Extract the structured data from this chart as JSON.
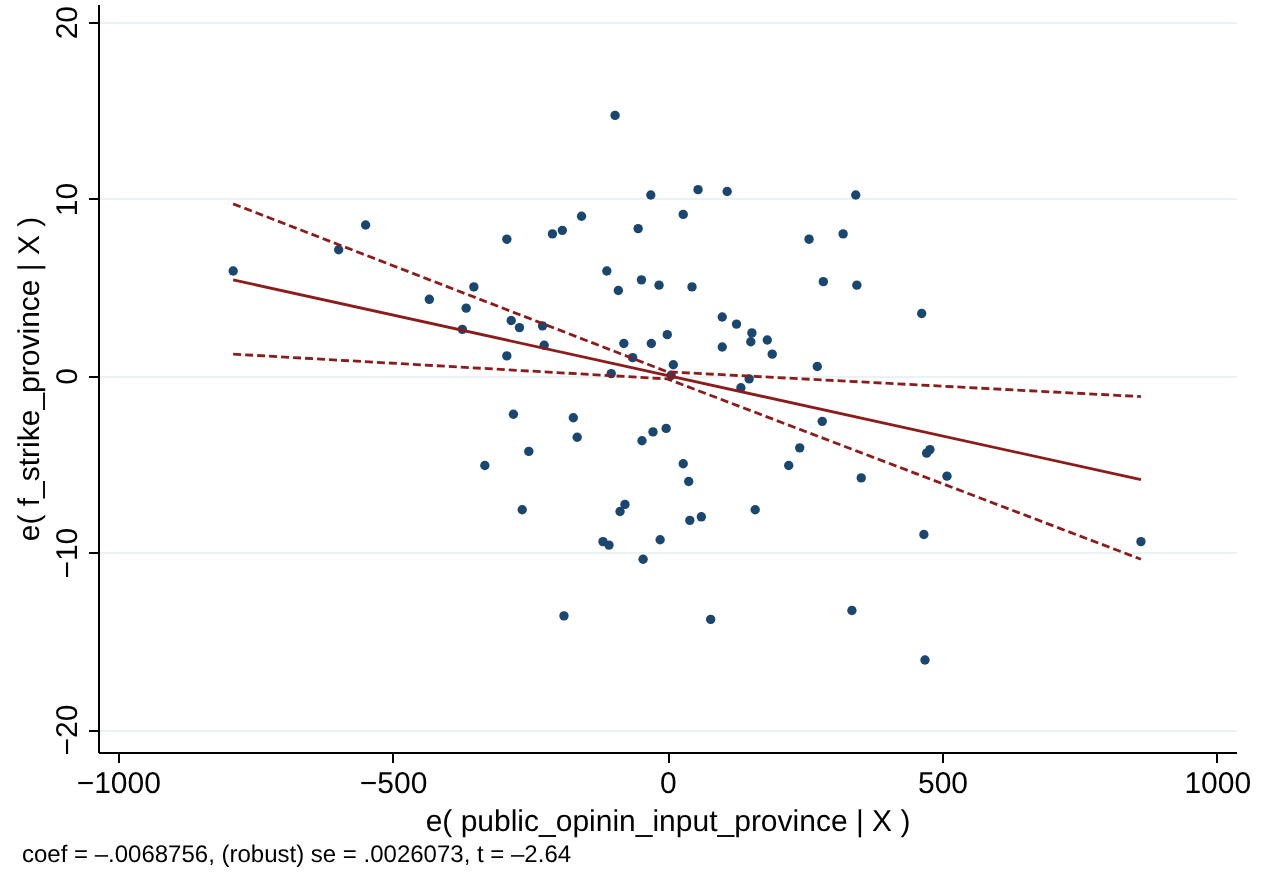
{
  "chart_data": {
    "type": "scatter",
    "xlabel": "e( public_opinin_input_province | X )",
    "ylabel": "e( f_strike_province | X )",
    "annotations": [
      "coef = –.0068756, (robust) se = .0026073, t = –2.64"
    ],
    "xlim": [
      -1036,
      1035
    ],
    "xticks": [
      -1000,
      -500,
      0,
      500,
      1000
    ],
    "ylim": [
      -21.3,
      21
    ],
    "yticks": [
      -20,
      -10,
      0,
      10,
      20
    ],
    "grid": "y",
    "marker": "circle",
    "series": [
      {
        "type": "scatter",
        "color": "#1a476f",
        "x": [
          -790,
          -598,
          -549,
          -433,
          -366,
          -352,
          -373,
          -292,
          -284,
          -269,
          -292,
          -227,
          -224,
          -209,
          -191,
          -156,
          -95,
          -110,
          -89,
          -79,
          -63,
          -102,
          -53,
          -47,
          -30,
          -29,
          -15,
          0,
          11,
          7,
          29,
          45,
          56,
          100,
          100,
          109,
          126,
          154,
          152,
          182,
          191,
          149,
          134,
          273,
          258,
          320,
          284,
          345,
          343,
          463,
          -280,
          -171,
          -164,
          -252,
          -332,
          -46,
          -26,
          -2,
          29,
          39,
          -264,
          -77,
          -86,
          41,
          62,
          -117,
          -106,
          -13,
          -44,
          -188,
          79,
          282,
          241,
          221,
          353,
          160,
          472,
          478,
          509,
          467,
          862,
          336,
          469
        ],
        "values": [
          5.9,
          7.1,
          8.5,
          4.3,
          3.8,
          5.0,
          2.6,
          7.7,
          3.1,
          2.7,
          1.1,
          2.8,
          1.7,
          8.0,
          8.2,
          9.0,
          14.7,
          5.9,
          4.8,
          1.8,
          1.0,
          0.1,
          8.3,
          5.4,
          10.2,
          1.8,
          5.1,
          2.3,
          0.6,
          0.0,
          9.1,
          5.0,
          10.5,
          3.3,
          1.6,
          10.4,
          2.9,
          2.4,
          1.9,
          2.0,
          1.2,
          -0.2,
          -0.7,
          0.5,
          7.7,
          8.0,
          5.3,
          5.1,
          10.2,
          3.5,
          -2.2,
          -2.4,
          -3.5,
          -4.3,
          -5.1,
          -3.7,
          -3.2,
          -3.0,
          -5.0,
          -6.0,
          -7.6,
          -7.3,
          -7.7,
          -8.2,
          -8.0,
          -9.4,
          -9.6,
          -9.3,
          -10.4,
          -13.6,
          -13.8,
          -2.6,
          -4.1,
          -5.1,
          -5.8,
          -7.6,
          -4.4,
          -4.2,
          -5.7,
          -9.0,
          -9.4,
          -13.3,
          -16.1
        ]
      },
      {
        "type": "line",
        "color": "#8c1c1c",
        "line_style": "solid",
        "marker": "none",
        "x": [
          -790,
          862
        ],
        "values": [
          5.4,
          -5.9
        ]
      },
      {
        "type": "line",
        "color": "#8c1c1c",
        "line_style": "dashed",
        "marker": "none",
        "x": [
          -790,
          0,
          862
        ],
        "values": [
          9.7,
          0.2,
          -1.2
        ]
      },
      {
        "type": "line",
        "color": "#8c1c1c",
        "line_style": "dashed",
        "marker": "none",
        "x": [
          -790,
          0,
          862
        ],
        "values": [
          1.2,
          -0.2,
          -10.4
        ]
      }
    ]
  }
}
